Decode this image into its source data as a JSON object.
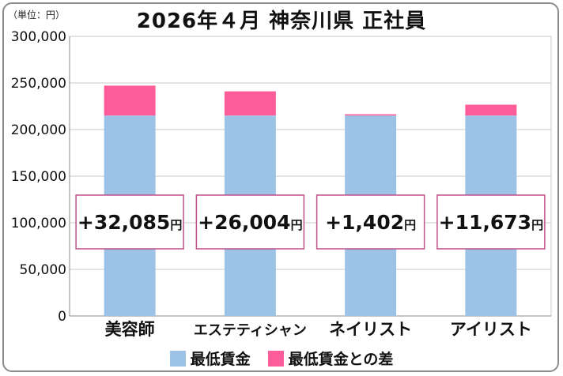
{
  "unit_label": "（単位：円）",
  "title": "2026年４月 神奈川県 正社員",
  "colors": {
    "base": "#9cc3e5",
    "diff": "#ff5c9a",
    "box_border": "#c0508a",
    "grid": "#c8c8c8",
    "axis": "#888888"
  },
  "legend": [
    {
      "label": "最低賃金",
      "color": "#9cc3e5"
    },
    {
      "label": "最低賃金との差",
      "color": "#ff5c9a"
    }
  ],
  "chart_data": {
    "type": "bar",
    "stacked": true,
    "categories": [
      "美容師",
      "エステティシャン",
      "ネイリスト",
      "アイリスト"
    ],
    "series": [
      {
        "name": "最低賃金",
        "values": [
          215000,
          215000,
          215000,
          215000
        ]
      },
      {
        "name": "最低賃金との差",
        "values": [
          32085,
          26004,
          1402,
          11673
        ]
      }
    ],
    "data_labels": [
      "+32,085円",
      "+26,004円",
      "+1,402円",
      "+11,673円"
    ],
    "ylim": [
      0,
      300000
    ],
    "yticks": [
      0,
      50000,
      100000,
      150000,
      200000,
      250000,
      300000
    ],
    "ytick_labels": [
      "0",
      "50,000",
      "100,000",
      "150,000",
      "200,000",
      "250,000",
      "300,000"
    ],
    "grid": true,
    "legend_position": "bottom"
  }
}
